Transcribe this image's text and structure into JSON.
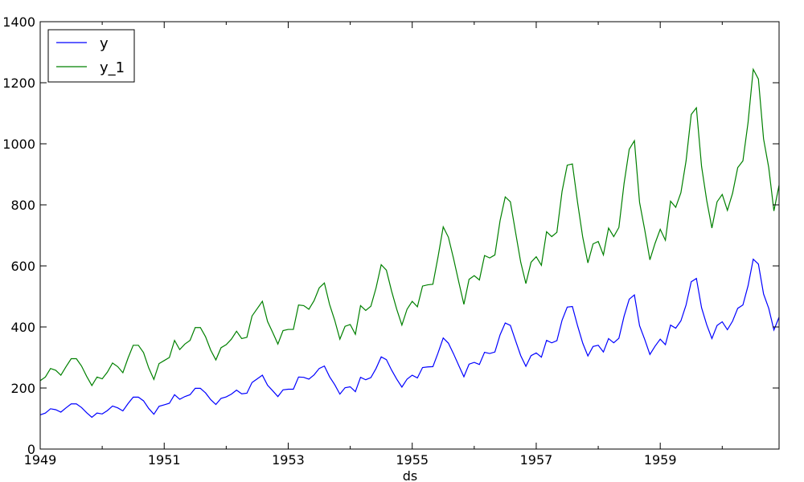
{
  "chart_data": {
    "type": "line",
    "title": "",
    "xlabel": "ds",
    "ylabel": "",
    "xlim": [
      1949,
      1960.9167
    ],
    "ylim": [
      0,
      1400
    ],
    "x_ticks": [
      "1949",
      "1951",
      "1953",
      "1955",
      "1957",
      "1959"
    ],
    "y_ticks": [
      "0",
      "200",
      "400",
      "600",
      "800",
      "1000",
      "1200",
      "1400"
    ],
    "grid": false,
    "legend": "top-left",
    "x_start": 1949,
    "x_step": 0.083333,
    "series": [
      {
        "name": "y",
        "color": "#0000ff",
        "values": [
          112,
          118,
          132,
          129,
          121,
          135,
          148,
          148,
          136,
          119,
          104,
          118,
          115,
          126,
          141,
          135,
          125,
          149,
          170,
          170,
          158,
          133,
          114,
          140,
          145,
          150,
          178,
          163,
          172,
          178,
          199,
          199,
          184,
          162,
          146,
          166,
          171,
          180,
          193,
          181,
          183,
          218,
          230,
          242,
          209,
          191,
          172,
          194,
          196,
          196,
          236,
          235,
          229,
          243,
          264,
          272,
          237,
          211,
          180,
          201,
          204,
          188,
          235,
          227,
          234,
          264,
          302,
          293,
          259,
          229,
          203,
          229,
          242,
          233,
          267,
          269,
          270,
          315,
          364,
          347,
          312,
          274,
          237,
          278,
          284,
          277,
          317,
          313,
          318,
          374,
          413,
          405,
          355,
          306,
          271,
          306,
          315,
          301,
          356,
          348,
          355,
          422,
          465,
          467,
          404,
          347,
          305,
          336,
          340,
          318,
          362,
          348,
          363,
          435,
          491,
          505,
          404,
          359,
          310,
          337,
          360,
          342,
          406,
          396,
          420,
          472,
          548,
          559,
          463,
          407,
          362,
          405,
          417,
          391,
          419,
          461,
          472,
          535,
          622,
          606,
          508,
          461,
          390,
          432
        ]
      },
      {
        "name": "y_1",
        "color": "#008000",
        "values": [
          224,
          236,
          264,
          258,
          242,
          270,
          296,
          296,
          272,
          238,
          208,
          236,
          230,
          252,
          282,
          270,
          250,
          298,
          340,
          340,
          316,
          266,
          228,
          280,
          290,
          300,
          356,
          326,
          344,
          356,
          398,
          398,
          368,
          324,
          292,
          332,
          342,
          360,
          386,
          362,
          366,
          436,
          460,
          484,
          418,
          382,
          344,
          388,
          392,
          392,
          472,
          470,
          458,
          486,
          528,
          544,
          474,
          422,
          360,
          402,
          408,
          376,
          470,
          454,
          468,
          528,
          604,
          586,
          518,
          458,
          406,
          458,
          484,
          466,
          534,
          538,
          540,
          630,
          728,
          694,
          624,
          548,
          474,
          556,
          568,
          554,
          634,
          626,
          636,
          748,
          826,
          810,
          710,
          612,
          542,
          612,
          630,
          602,
          712,
          696,
          710,
          844,
          930,
          934,
          808,
          694,
          610,
          672,
          680,
          636,
          724,
          696,
          726,
          870,
          982,
          1010,
          808,
          718,
          620,
          674,
          720,
          684,
          812,
          792,
          840,
          944,
          1096,
          1118,
          926,
          814,
          724,
          810,
          834,
          782,
          838,
          922,
          944,
          1070,
          1244,
          1212,
          1016,
          922,
          780,
          864
        ]
      }
    ]
  }
}
